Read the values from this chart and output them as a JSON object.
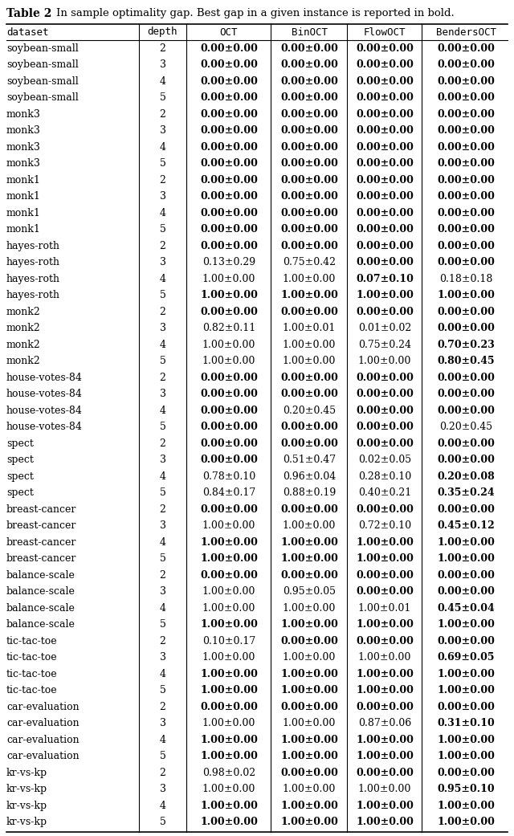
{
  "title": "Table 2",
  "subtitle": "In sample optimality gap. Best gap in a given instance is reported in bold.",
  "columns": [
    "dataset",
    "depth",
    "OCT",
    "BinOCT",
    "FlowOCT",
    "BendersOCT"
  ],
  "rows": [
    [
      "soybean-small",
      "2",
      "0.00±0.00",
      "0.00±0.00",
      "0.00±0.00",
      "0.00±0.00"
    ],
    [
      "soybean-small",
      "3",
      "0.00±0.00",
      "0.00±0.00",
      "0.00±0.00",
      "0.00±0.00"
    ],
    [
      "soybean-small",
      "4",
      "0.00±0.00",
      "0.00±0.00",
      "0.00±0.00",
      "0.00±0.00"
    ],
    [
      "soybean-small",
      "5",
      "0.00±0.00",
      "0.00±0.00",
      "0.00±0.00",
      "0.00±0.00"
    ],
    [
      "monk3",
      "2",
      "0.00±0.00",
      "0.00±0.00",
      "0.00±0.00",
      "0.00±0.00"
    ],
    [
      "monk3",
      "3",
      "0.00±0.00",
      "0.00±0.00",
      "0.00±0.00",
      "0.00±0.00"
    ],
    [
      "monk3",
      "4",
      "0.00±0.00",
      "0.00±0.00",
      "0.00±0.00",
      "0.00±0.00"
    ],
    [
      "monk3",
      "5",
      "0.00±0.00",
      "0.00±0.00",
      "0.00±0.00",
      "0.00±0.00"
    ],
    [
      "monk1",
      "2",
      "0.00±0.00",
      "0.00±0.00",
      "0.00±0.00",
      "0.00±0.00"
    ],
    [
      "monk1",
      "3",
      "0.00±0.00",
      "0.00±0.00",
      "0.00±0.00",
      "0.00±0.00"
    ],
    [
      "monk1",
      "4",
      "0.00±0.00",
      "0.00±0.00",
      "0.00±0.00",
      "0.00±0.00"
    ],
    [
      "monk1",
      "5",
      "0.00±0.00",
      "0.00±0.00",
      "0.00±0.00",
      "0.00±0.00"
    ],
    [
      "hayes-roth",
      "2",
      "0.00±0.00",
      "0.00±0.00",
      "0.00±0.00",
      "0.00±0.00"
    ],
    [
      "hayes-roth",
      "3",
      "0.13±0.29",
      "0.75±0.42",
      "0.00±0.00",
      "0.00±0.00"
    ],
    [
      "hayes-roth",
      "4",
      "1.00±0.00",
      "1.00±0.00",
      "0.07±0.10",
      "0.18±0.18"
    ],
    [
      "hayes-roth",
      "5",
      "1.00±0.00",
      "1.00±0.00",
      "1.00±0.00",
      "1.00±0.00"
    ],
    [
      "monk2",
      "2",
      "0.00±0.00",
      "0.00±0.00",
      "0.00±0.00",
      "0.00±0.00"
    ],
    [
      "monk2",
      "3",
      "0.82±0.11",
      "1.00±0.01",
      "0.01±0.02",
      "0.00±0.00"
    ],
    [
      "monk2",
      "4",
      "1.00±0.00",
      "1.00±0.00",
      "0.75±0.24",
      "0.70±0.23"
    ],
    [
      "monk2",
      "5",
      "1.00±0.00",
      "1.00±0.00",
      "1.00±0.00",
      "0.80±0.45"
    ],
    [
      "house-votes-84",
      "2",
      "0.00±0.00",
      "0.00±0.00",
      "0.00±0.00",
      "0.00±0.00"
    ],
    [
      "house-votes-84",
      "3",
      "0.00±0.00",
      "0.00±0.00",
      "0.00±0.00",
      "0.00±0.00"
    ],
    [
      "house-votes-84",
      "4",
      "0.00±0.00",
      "0.20±0.45",
      "0.00±0.00",
      "0.00±0.00"
    ],
    [
      "house-votes-84",
      "5",
      "0.00±0.00",
      "0.00±0.00",
      "0.00±0.00",
      "0.20±0.45"
    ],
    [
      "spect",
      "2",
      "0.00±0.00",
      "0.00±0.00",
      "0.00±0.00",
      "0.00±0.00"
    ],
    [
      "spect",
      "3",
      "0.00±0.00",
      "0.51±0.47",
      "0.02±0.05",
      "0.00±0.00"
    ],
    [
      "spect",
      "4",
      "0.78±0.10",
      "0.96±0.04",
      "0.28±0.10",
      "0.20±0.08"
    ],
    [
      "spect",
      "5",
      "0.84±0.17",
      "0.88±0.19",
      "0.40±0.21",
      "0.35±0.24"
    ],
    [
      "breast-cancer",
      "2",
      "0.00±0.00",
      "0.00±0.00",
      "0.00±0.00",
      "0.00±0.00"
    ],
    [
      "breast-cancer",
      "3",
      "1.00±0.00",
      "1.00±0.00",
      "0.72±0.10",
      "0.45±0.12"
    ],
    [
      "breast-cancer",
      "4",
      "1.00±0.00",
      "1.00±0.00",
      "1.00±0.00",
      "1.00±0.00"
    ],
    [
      "breast-cancer",
      "5",
      "1.00±0.00",
      "1.00±0.00",
      "1.00±0.00",
      "1.00±0.00"
    ],
    [
      "balance-scale",
      "2",
      "0.00±0.00",
      "0.00±0.00",
      "0.00±0.00",
      "0.00±0.00"
    ],
    [
      "balance-scale",
      "3",
      "1.00±0.00",
      "0.95±0.05",
      "0.00±0.00",
      "0.00±0.00"
    ],
    [
      "balance-scale",
      "4",
      "1.00±0.00",
      "1.00±0.00",
      "1.00±0.01",
      "0.45±0.04"
    ],
    [
      "balance-scale",
      "5",
      "1.00±0.00",
      "1.00±0.00",
      "1.00±0.00",
      "1.00±0.00"
    ],
    [
      "tic-tac-toe",
      "2",
      "0.10±0.17",
      "0.00±0.00",
      "0.00±0.00",
      "0.00±0.00"
    ],
    [
      "tic-tac-toe",
      "3",
      "1.00±0.00",
      "1.00±0.00",
      "1.00±0.00",
      "0.69±0.05"
    ],
    [
      "tic-tac-toe",
      "4",
      "1.00±0.00",
      "1.00±0.00",
      "1.00±0.00",
      "1.00±0.00"
    ],
    [
      "tic-tac-toe",
      "5",
      "1.00±0.00",
      "1.00±0.00",
      "1.00±0.00",
      "1.00±0.00"
    ],
    [
      "car-evaluation",
      "2",
      "0.00±0.00",
      "0.00±0.00",
      "0.00±0.00",
      "0.00±0.00"
    ],
    [
      "car-evaluation",
      "3",
      "1.00±0.00",
      "1.00±0.00",
      "0.87±0.06",
      "0.31±0.10"
    ],
    [
      "car-evaluation",
      "4",
      "1.00±0.00",
      "1.00±0.00",
      "1.00±0.00",
      "1.00±0.00"
    ],
    [
      "car-evaluation",
      "5",
      "1.00±0.00",
      "1.00±0.00",
      "1.00±0.00",
      "1.00±0.00"
    ],
    [
      "kr-vs-kp",
      "2",
      "0.98±0.02",
      "0.00±0.00",
      "0.00±0.00",
      "0.00±0.00"
    ],
    [
      "kr-vs-kp",
      "3",
      "1.00±0.00",
      "1.00±0.00",
      "1.00±0.00",
      "0.95±0.10"
    ],
    [
      "kr-vs-kp",
      "4",
      "1.00±0.00",
      "1.00±0.00",
      "1.00±0.00",
      "1.00±0.00"
    ],
    [
      "kr-vs-kp",
      "5",
      "1.00±0.00",
      "1.00±0.00",
      "1.00±0.00",
      "1.00±0.00"
    ]
  ],
  "bold_flags": [
    [
      true,
      true,
      true,
      true
    ],
    [
      true,
      true,
      true,
      true
    ],
    [
      true,
      true,
      true,
      true
    ],
    [
      true,
      true,
      true,
      true
    ],
    [
      true,
      true,
      true,
      true
    ],
    [
      true,
      true,
      true,
      true
    ],
    [
      true,
      true,
      true,
      true
    ],
    [
      true,
      true,
      true,
      true
    ],
    [
      true,
      true,
      true,
      true
    ],
    [
      true,
      true,
      true,
      true
    ],
    [
      true,
      true,
      true,
      true
    ],
    [
      true,
      true,
      true,
      true
    ],
    [
      true,
      true,
      true,
      true
    ],
    [
      false,
      false,
      true,
      true
    ],
    [
      false,
      false,
      true,
      false
    ],
    [
      true,
      true,
      true,
      true
    ],
    [
      true,
      true,
      true,
      true
    ],
    [
      false,
      false,
      false,
      true
    ],
    [
      false,
      false,
      false,
      true
    ],
    [
      false,
      false,
      false,
      true
    ],
    [
      true,
      true,
      true,
      true
    ],
    [
      true,
      true,
      true,
      true
    ],
    [
      true,
      false,
      true,
      true
    ],
    [
      true,
      true,
      true,
      false
    ],
    [
      true,
      true,
      true,
      true
    ],
    [
      true,
      false,
      false,
      true
    ],
    [
      false,
      false,
      false,
      true
    ],
    [
      false,
      false,
      false,
      true
    ],
    [
      true,
      true,
      true,
      true
    ],
    [
      false,
      false,
      false,
      true
    ],
    [
      true,
      true,
      true,
      true
    ],
    [
      true,
      true,
      true,
      true
    ],
    [
      true,
      true,
      true,
      true
    ],
    [
      false,
      false,
      true,
      true
    ],
    [
      false,
      false,
      false,
      true
    ],
    [
      true,
      true,
      true,
      true
    ],
    [
      false,
      true,
      true,
      true
    ],
    [
      false,
      false,
      false,
      true
    ],
    [
      true,
      true,
      true,
      true
    ],
    [
      true,
      true,
      true,
      true
    ],
    [
      true,
      true,
      true,
      true
    ],
    [
      false,
      false,
      false,
      true
    ],
    [
      true,
      true,
      true,
      true
    ],
    [
      true,
      true,
      true,
      true
    ],
    [
      false,
      true,
      true,
      true
    ],
    [
      false,
      false,
      false,
      true
    ],
    [
      true,
      true,
      true,
      true
    ],
    [
      true,
      true,
      true,
      true
    ]
  ],
  "bg_color": "#ffffff",
  "font_size": 9,
  "title_font_size": 10,
  "mono_font_size": 9
}
